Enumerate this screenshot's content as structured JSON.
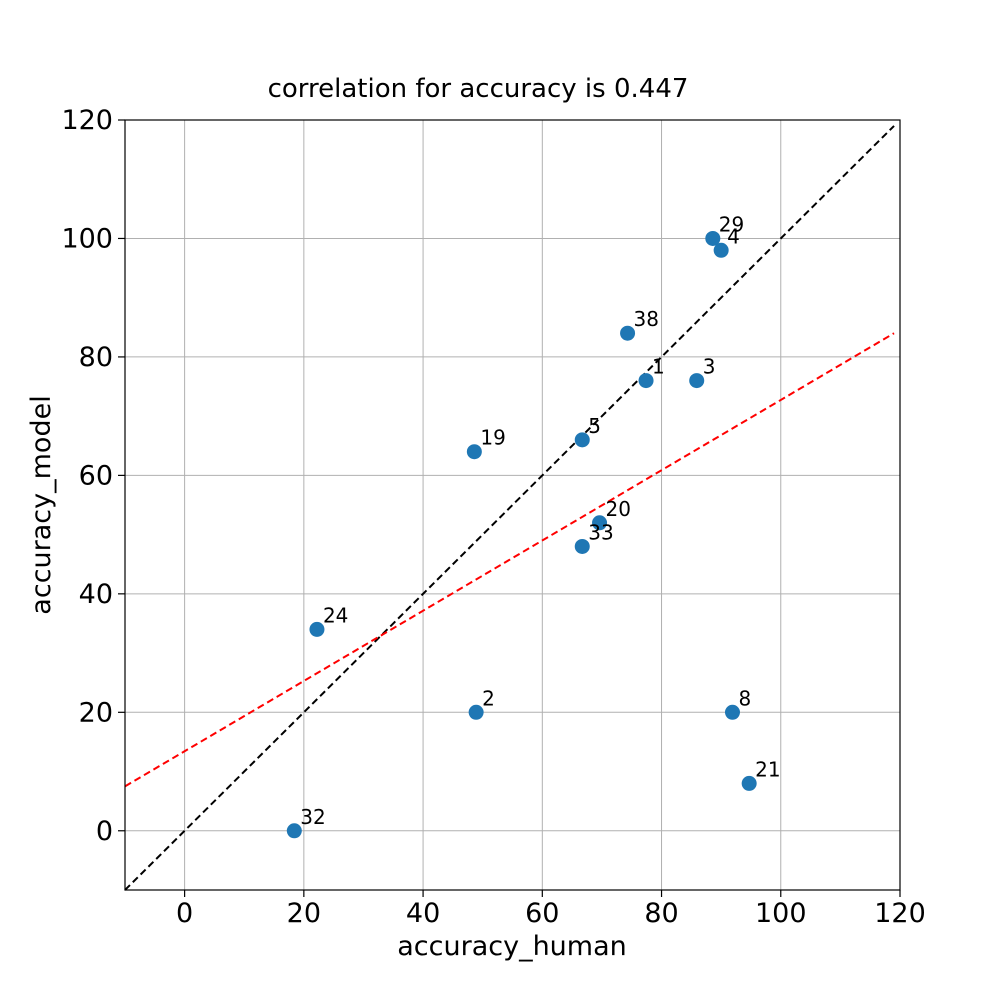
{
  "chart_data": {
    "type": "scatter",
    "title": "correlation for accuracy is 0.447",
    "xlabel": "accuracy_human",
    "ylabel": "accuracy_model",
    "xlim": [
      -10,
      120
    ],
    "ylim": [
      -10,
      120
    ],
    "xticks": [
      0,
      20,
      40,
      60,
      80,
      100,
      120
    ],
    "yticks": [
      0,
      20,
      40,
      60,
      80,
      100,
      120
    ],
    "grid": true,
    "point_color": "#1f77b4",
    "points": [
      {
        "label": "29",
        "x": 88.6,
        "y": 100
      },
      {
        "label": "4",
        "x": 90.0,
        "y": 98
      },
      {
        "label": "38",
        "x": 74.3,
        "y": 84
      },
      {
        "label": "1",
        "x": 77.4,
        "y": 76
      },
      {
        "label": "3",
        "x": 85.9,
        "y": 76
      },
      {
        "label": "5",
        "x": 66.7,
        "y": 66
      },
      {
        "label": "19",
        "x": 48.6,
        "y": 64
      },
      {
        "label": "20",
        "x": 69.6,
        "y": 52
      },
      {
        "label": "33",
        "x": 66.7,
        "y": 48
      },
      {
        "label": "24",
        "x": 22.2,
        "y": 34
      },
      {
        "label": "2",
        "x": 48.9,
        "y": 20
      },
      {
        "label": "8",
        "x": 91.9,
        "y": 20
      },
      {
        "label": "21",
        "x": 94.7,
        "y": 8
      },
      {
        "label": "32",
        "x": 18.4,
        "y": 0
      }
    ],
    "reference_lines": [
      {
        "kind": "identity",
        "color": "#000000",
        "style": "dashed",
        "from": [
          -10,
          -10
        ],
        "to": [
          119,
          119
        ]
      },
      {
        "kind": "fit",
        "color": "#ff0000",
        "style": "dashed",
        "from": [
          -10,
          7.5
        ],
        "to": [
          119,
          84
        ]
      }
    ]
  }
}
